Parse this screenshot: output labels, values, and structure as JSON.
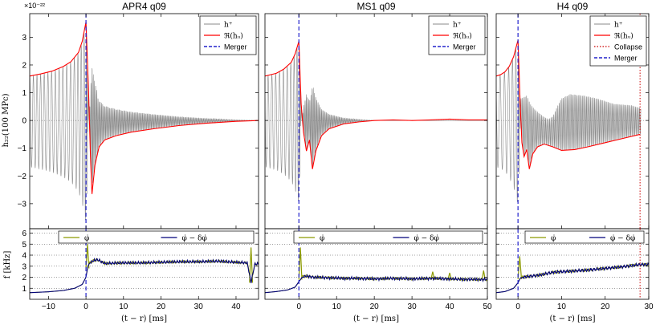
{
  "chart_data": {
    "type": "line",
    "y_exponent_label": "×10⁻²²",
    "ylabel_top": "h₂₂(100 MPc)",
    "ylabel_bottom": "f [kHz]",
    "xlabel": "(t − r) [ms]",
    "ylim_top": [
      -3.9,
      3.85
    ],
    "yticks_top": [
      -3,
      -2,
      -1,
      0,
      1,
      2,
      3
    ],
    "ylim_bottom": [
      0,
      6.4
    ],
    "yticks_bottom": [
      1,
      2,
      3,
      4,
      5,
      6
    ],
    "colors": {
      "h_plus": "#8a8a8a",
      "envelope": "#ff0000",
      "merger": "#2222cc",
      "collapse": "#cc0000",
      "phidot": "#8c9a00",
      "phidot_corrected": "#00007a"
    },
    "panels": [
      {
        "title": "APR4 q09",
        "xlim": [
          -15,
          46
        ],
        "xticks": [
          -10,
          0,
          10,
          20,
          30,
          40
        ],
        "merger_time": 0,
        "legend_top": [
          "h⁺",
          "ℜ(hᵤ)",
          "Merger"
        ],
        "legend_bottom": [
          "φ̇",
          "φ̇ − δφ̇"
        ],
        "envelope": [
          [
            -15,
            1.6
          ],
          [
            -12,
            1.68
          ],
          [
            -9,
            1.78
          ],
          [
            -6,
            1.95
          ],
          [
            -4,
            2.12
          ],
          [
            -2,
            2.45
          ],
          [
            -1,
            2.85
          ],
          [
            0,
            3.55
          ],
          [
            0.7,
            1.0
          ],
          [
            1.2,
            -1.3
          ],
          [
            1.6,
            -2.65
          ],
          [
            2.4,
            -1.6
          ],
          [
            3.5,
            -0.95
          ],
          [
            5,
            -0.7
          ],
          [
            8,
            -0.55
          ],
          [
            12,
            -0.42
          ],
          [
            18,
            -0.3
          ],
          [
            25,
            -0.18
          ],
          [
            32,
            -0.1
          ],
          [
            40,
            -0.03
          ],
          [
            46,
            0
          ]
        ],
        "freq": [
          [
            -15,
            0.6
          ],
          [
            -10,
            0.68
          ],
          [
            -6,
            0.8
          ],
          [
            -3,
            1.0
          ],
          [
            -1,
            1.35
          ],
          [
            0,
            2.0
          ],
          [
            0.5,
            3.0
          ],
          [
            1,
            3.3
          ],
          [
            2,
            3.5
          ],
          [
            3,
            3.6
          ],
          [
            5,
            3.25
          ],
          [
            10,
            3.3
          ],
          [
            15,
            3.3
          ],
          [
            20,
            3.35
          ],
          [
            25,
            3.4
          ],
          [
            30,
            3.4
          ],
          [
            35,
            3.45
          ],
          [
            40,
            3.35
          ],
          [
            43,
            3.3
          ],
          [
            44,
            1.5
          ],
          [
            45,
            3.2
          ],
          [
            46,
            3.2
          ]
        ],
        "freq_spikes": [
          [
            0.4,
            5.0
          ],
          [
            44,
            4.7
          ]
        ]
      },
      {
        "title": "MS1 q09",
        "xlim": [
          -9,
          50
        ],
        "xticks": [
          0,
          10,
          20,
          30,
          40,
          50
        ],
        "merger_time": 0,
        "legend_top": [
          "h⁺",
          "ℜ(hᵤ)",
          "Merger"
        ],
        "legend_bottom": [
          "φ̇",
          "φ̇ − δφ̇"
        ],
        "envelope": [
          [
            -9,
            1.6
          ],
          [
            -6,
            1.7
          ],
          [
            -4,
            1.85
          ],
          [
            -2,
            2.1
          ],
          [
            -1,
            2.4
          ],
          [
            0,
            2.85
          ],
          [
            0.6,
            0.6
          ],
          [
            1.2,
            -0.4
          ],
          [
            2,
            -1.1
          ],
          [
            2.8,
            -0.7
          ],
          [
            3.6,
            -1.75
          ],
          [
            4.5,
            -1.1
          ],
          [
            6,
            -0.55
          ],
          [
            8,
            -0.3
          ],
          [
            12,
            -0.12
          ],
          [
            16,
            -0.05
          ],
          [
            20,
            0
          ],
          [
            25,
            0.02
          ],
          [
            30,
            0
          ],
          [
            35,
            0.02
          ],
          [
            40,
            0.05
          ],
          [
            45,
            0.02
          ],
          [
            50,
            0.02
          ]
        ],
        "freq": [
          [
            -9,
            0.6
          ],
          [
            -6,
            0.7
          ],
          [
            -3,
            0.85
          ],
          [
            -1,
            1.1
          ],
          [
            0,
            1.6
          ],
          [
            1,
            2.05
          ],
          [
            2,
            2.1
          ],
          [
            4,
            2.0
          ],
          [
            8,
            1.95
          ],
          [
            12,
            1.9
          ],
          [
            16,
            1.9
          ],
          [
            20,
            1.85
          ],
          [
            25,
            1.9
          ],
          [
            30,
            1.85
          ],
          [
            35,
            1.9
          ],
          [
            40,
            1.85
          ],
          [
            45,
            1.8
          ],
          [
            50,
            1.8
          ]
        ],
        "freq_spikes": [
          [
            0.4,
            4.7
          ],
          [
            35.5,
            2.5
          ],
          [
            40,
            2.4
          ],
          [
            49,
            2.6
          ]
        ]
      },
      {
        "title": "H4 q09",
        "xlim": [
          -5,
          30
        ],
        "xticks": [
          0,
          10,
          20,
          30
        ],
        "merger_time": 0,
        "collapse_time": 28,
        "legend_top": [
          "h⁺",
          "ℜ(hᵤ)",
          "Collapse",
          "Merger"
        ],
        "legend_bottom": [
          "φ̇",
          "φ̇ − δφ̇"
        ],
        "envelope": [
          [
            -5,
            1.6
          ],
          [
            -4,
            1.65
          ],
          [
            -3,
            1.75
          ],
          [
            -2,
            1.95
          ],
          [
            -1,
            2.3
          ],
          [
            0,
            2.9
          ],
          [
            0.5,
            0.6
          ],
          [
            0.9,
            -0.8
          ],
          [
            1.4,
            -1.3
          ],
          [
            2,
            -1.05
          ],
          [
            2.6,
            -1.75
          ],
          [
            3.4,
            -1.2
          ],
          [
            4.5,
            -0.95
          ],
          [
            6,
            -0.85
          ],
          [
            8,
            -0.95
          ],
          [
            10,
            -1.08
          ],
          [
            13,
            -1.05
          ],
          [
            16,
            -0.95
          ],
          [
            20,
            -0.8
          ],
          [
            24,
            -0.65
          ],
          [
            28,
            -0.5
          ]
        ],
        "upper_envelope": [
          [
            0.8,
            0.8
          ],
          [
            2,
            0.9
          ],
          [
            3,
            0.55
          ],
          [
            4.2,
            0.35
          ],
          [
            5,
            0.25
          ],
          [
            6,
            0.12
          ],
          [
            7,
            0.05
          ],
          [
            8,
            0.15
          ],
          [
            9,
            0.5
          ],
          [
            10,
            0.8
          ],
          [
            12,
            0.95
          ],
          [
            15,
            0.9
          ],
          [
            18,
            0.8
          ],
          [
            22,
            0.6
          ],
          [
            26,
            0.55
          ],
          [
            28,
            0.45
          ]
        ],
        "freq": [
          [
            -5,
            0.6
          ],
          [
            -3,
            0.7
          ],
          [
            -1,
            1.0
          ],
          [
            0,
            1.5
          ],
          [
            0.5,
            1.9
          ],
          [
            1,
            2.0
          ],
          [
            3,
            2.1
          ],
          [
            5,
            2.2
          ],
          [
            8,
            2.45
          ],
          [
            12,
            2.55
          ],
          [
            16,
            2.65
          ],
          [
            20,
            2.8
          ],
          [
            24,
            2.95
          ],
          [
            28,
            3.15
          ]
        ],
        "freq_spikes": [
          [
            0.4,
            3.9
          ]
        ]
      }
    ]
  }
}
